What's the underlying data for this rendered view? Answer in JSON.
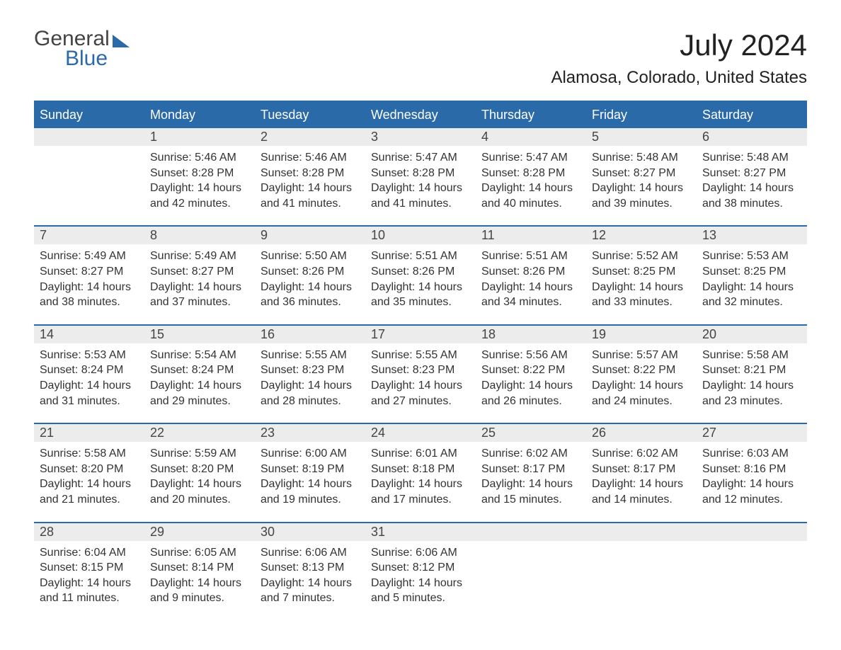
{
  "brand": {
    "top": "General",
    "bottom": "Blue"
  },
  "title": "July 2024",
  "location": "Alamosa, Colorado, United States",
  "weekdays": [
    "Sunday",
    "Monday",
    "Tuesday",
    "Wednesday",
    "Thursday",
    "Friday",
    "Saturday"
  ],
  "colors": {
    "accent": "#2b6aa8",
    "daynum_bg": "#ececec",
    "background": "#ffffff",
    "text": "#333333"
  },
  "layout": {
    "columns": 7,
    "rows": 5,
    "font_family": "Arial",
    "header_fontsize": 18,
    "title_fontsize": 42,
    "location_fontsize": 24,
    "body_fontsize": 16
  },
  "weeks": [
    [
      {
        "day": "",
        "sunrise": "",
        "sunset": "",
        "daylight": ""
      },
      {
        "day": "1",
        "sunrise": "Sunrise: 5:46 AM",
        "sunset": "Sunset: 8:28 PM",
        "daylight": "Daylight: 14 hours and 42 minutes."
      },
      {
        "day": "2",
        "sunrise": "Sunrise: 5:46 AM",
        "sunset": "Sunset: 8:28 PM",
        "daylight": "Daylight: 14 hours and 41 minutes."
      },
      {
        "day": "3",
        "sunrise": "Sunrise: 5:47 AM",
        "sunset": "Sunset: 8:28 PM",
        "daylight": "Daylight: 14 hours and 41 minutes."
      },
      {
        "day": "4",
        "sunrise": "Sunrise: 5:47 AM",
        "sunset": "Sunset: 8:28 PM",
        "daylight": "Daylight: 14 hours and 40 minutes."
      },
      {
        "day": "5",
        "sunrise": "Sunrise: 5:48 AM",
        "sunset": "Sunset: 8:27 PM",
        "daylight": "Daylight: 14 hours and 39 minutes."
      },
      {
        "day": "6",
        "sunrise": "Sunrise: 5:48 AM",
        "sunset": "Sunset: 8:27 PM",
        "daylight": "Daylight: 14 hours and 38 minutes."
      }
    ],
    [
      {
        "day": "7",
        "sunrise": "Sunrise: 5:49 AM",
        "sunset": "Sunset: 8:27 PM",
        "daylight": "Daylight: 14 hours and 38 minutes."
      },
      {
        "day": "8",
        "sunrise": "Sunrise: 5:49 AM",
        "sunset": "Sunset: 8:27 PM",
        "daylight": "Daylight: 14 hours and 37 minutes."
      },
      {
        "day": "9",
        "sunrise": "Sunrise: 5:50 AM",
        "sunset": "Sunset: 8:26 PM",
        "daylight": "Daylight: 14 hours and 36 minutes."
      },
      {
        "day": "10",
        "sunrise": "Sunrise: 5:51 AM",
        "sunset": "Sunset: 8:26 PM",
        "daylight": "Daylight: 14 hours and 35 minutes."
      },
      {
        "day": "11",
        "sunrise": "Sunrise: 5:51 AM",
        "sunset": "Sunset: 8:26 PM",
        "daylight": "Daylight: 14 hours and 34 minutes."
      },
      {
        "day": "12",
        "sunrise": "Sunrise: 5:52 AM",
        "sunset": "Sunset: 8:25 PM",
        "daylight": "Daylight: 14 hours and 33 minutes."
      },
      {
        "day": "13",
        "sunrise": "Sunrise: 5:53 AM",
        "sunset": "Sunset: 8:25 PM",
        "daylight": "Daylight: 14 hours and 32 minutes."
      }
    ],
    [
      {
        "day": "14",
        "sunrise": "Sunrise: 5:53 AM",
        "sunset": "Sunset: 8:24 PM",
        "daylight": "Daylight: 14 hours and 31 minutes."
      },
      {
        "day": "15",
        "sunrise": "Sunrise: 5:54 AM",
        "sunset": "Sunset: 8:24 PM",
        "daylight": "Daylight: 14 hours and 29 minutes."
      },
      {
        "day": "16",
        "sunrise": "Sunrise: 5:55 AM",
        "sunset": "Sunset: 8:23 PM",
        "daylight": "Daylight: 14 hours and 28 minutes."
      },
      {
        "day": "17",
        "sunrise": "Sunrise: 5:55 AM",
        "sunset": "Sunset: 8:23 PM",
        "daylight": "Daylight: 14 hours and 27 minutes."
      },
      {
        "day": "18",
        "sunrise": "Sunrise: 5:56 AM",
        "sunset": "Sunset: 8:22 PM",
        "daylight": "Daylight: 14 hours and 26 minutes."
      },
      {
        "day": "19",
        "sunrise": "Sunrise: 5:57 AM",
        "sunset": "Sunset: 8:22 PM",
        "daylight": "Daylight: 14 hours and 24 minutes."
      },
      {
        "day": "20",
        "sunrise": "Sunrise: 5:58 AM",
        "sunset": "Sunset: 8:21 PM",
        "daylight": "Daylight: 14 hours and 23 minutes."
      }
    ],
    [
      {
        "day": "21",
        "sunrise": "Sunrise: 5:58 AM",
        "sunset": "Sunset: 8:20 PM",
        "daylight": "Daylight: 14 hours and 21 minutes."
      },
      {
        "day": "22",
        "sunrise": "Sunrise: 5:59 AM",
        "sunset": "Sunset: 8:20 PM",
        "daylight": "Daylight: 14 hours and 20 minutes."
      },
      {
        "day": "23",
        "sunrise": "Sunrise: 6:00 AM",
        "sunset": "Sunset: 8:19 PM",
        "daylight": "Daylight: 14 hours and 19 minutes."
      },
      {
        "day": "24",
        "sunrise": "Sunrise: 6:01 AM",
        "sunset": "Sunset: 8:18 PM",
        "daylight": "Daylight: 14 hours and 17 minutes."
      },
      {
        "day": "25",
        "sunrise": "Sunrise: 6:02 AM",
        "sunset": "Sunset: 8:17 PM",
        "daylight": "Daylight: 14 hours and 15 minutes."
      },
      {
        "day": "26",
        "sunrise": "Sunrise: 6:02 AM",
        "sunset": "Sunset: 8:17 PM",
        "daylight": "Daylight: 14 hours and 14 minutes."
      },
      {
        "day": "27",
        "sunrise": "Sunrise: 6:03 AM",
        "sunset": "Sunset: 8:16 PM",
        "daylight": "Daylight: 14 hours and 12 minutes."
      }
    ],
    [
      {
        "day": "28",
        "sunrise": "Sunrise: 6:04 AM",
        "sunset": "Sunset: 8:15 PM",
        "daylight": "Daylight: 14 hours and 11 minutes."
      },
      {
        "day": "29",
        "sunrise": "Sunrise: 6:05 AM",
        "sunset": "Sunset: 8:14 PM",
        "daylight": "Daylight: 14 hours and 9 minutes."
      },
      {
        "day": "30",
        "sunrise": "Sunrise: 6:06 AM",
        "sunset": "Sunset: 8:13 PM",
        "daylight": "Daylight: 14 hours and 7 minutes."
      },
      {
        "day": "31",
        "sunrise": "Sunrise: 6:06 AM",
        "sunset": "Sunset: 8:12 PM",
        "daylight": "Daylight: 14 hours and 5 minutes."
      },
      {
        "day": "",
        "sunrise": "",
        "sunset": "",
        "daylight": ""
      },
      {
        "day": "",
        "sunrise": "",
        "sunset": "",
        "daylight": ""
      },
      {
        "day": "",
        "sunrise": "",
        "sunset": "",
        "daylight": ""
      }
    ]
  ]
}
